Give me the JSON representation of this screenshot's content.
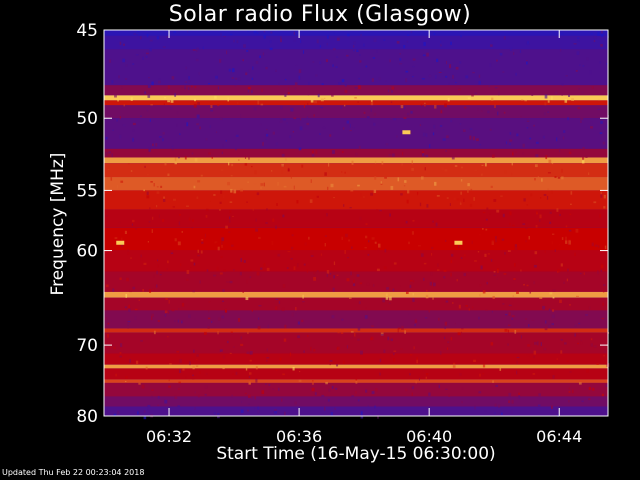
{
  "chart_data": {
    "type": "heatmap",
    "title": "Solar radio Flux (Glasgow)",
    "xlabel": "Start Time (16-May-15 06:30:00)",
    "ylabel": "Frequency [MHz]",
    "x_range_minutes": [
      0,
      15.5
    ],
    "x_ticks": [
      {
        "minute": 2,
        "label": "06:32"
      },
      {
        "minute": 6,
        "label": "06:36"
      },
      {
        "minute": 10,
        "label": "06:40"
      },
      {
        "minute": 14,
        "label": "06:44"
      }
    ],
    "y_range_mhz": [
      45,
      80
    ],
    "y_ticks": [
      {
        "value": 45,
        "label": "45"
      },
      {
        "value": 50,
        "label": "50"
      },
      {
        "value": 55,
        "label": "55"
      },
      {
        "value": 60,
        "label": "60"
      },
      {
        "value": 70,
        "label": "70"
      },
      {
        "value": 80,
        "label": "80"
      }
    ],
    "y_scale": "reciprocal",
    "colors": {
      "low": "#1a18c8",
      "mid": "#c80000",
      "high": "#ffe060"
    },
    "bands": [
      {
        "f1": 45.0,
        "f2": 45.3,
        "level": 0.05
      },
      {
        "f1": 45.3,
        "f2": 46.0,
        "level": 0.1
      },
      {
        "f1": 46.0,
        "f2": 48.0,
        "level": 0.15
      },
      {
        "f1": 48.0,
        "f2": 48.6,
        "level": 0.3
      },
      {
        "f1": 48.6,
        "f2": 48.9,
        "level": 0.95
      },
      {
        "f1": 48.9,
        "f2": 49.2,
        "level": 0.55
      },
      {
        "f1": 49.2,
        "f2": 50.0,
        "level": 0.25
      },
      {
        "f1": 50.0,
        "f2": 52.0,
        "level": 0.18
      },
      {
        "f1": 52.0,
        "f2": 52.6,
        "level": 0.35
      },
      {
        "f1": 52.6,
        "f2": 53.0,
        "level": 0.85
      },
      {
        "f1": 53.0,
        "f2": 54.0,
        "level": 0.6
      },
      {
        "f1": 54.0,
        "f2": 55.0,
        "level": 0.7
      },
      {
        "f1": 55.0,
        "f2": 56.5,
        "level": 0.55
      },
      {
        "f1": 56.5,
        "f2": 58.0,
        "level": 0.45
      },
      {
        "f1": 58.0,
        "f2": 60.0,
        "level": 0.5
      },
      {
        "f1": 60.0,
        "f2": 62.0,
        "level": 0.45
      },
      {
        "f1": 62.0,
        "f2": 64.0,
        "level": 0.4
      },
      {
        "f1": 64.0,
        "f2": 64.6,
        "level": 0.85
      },
      {
        "f1": 64.6,
        "f2": 66.0,
        "level": 0.4
      },
      {
        "f1": 66.0,
        "f2": 68.0,
        "level": 0.3
      },
      {
        "f1": 68.0,
        "f2": 68.5,
        "level": 0.6
      },
      {
        "f1": 68.5,
        "f2": 71.0,
        "level": 0.4
      },
      {
        "f1": 71.0,
        "f2": 72.5,
        "level": 0.45
      },
      {
        "f1": 72.5,
        "f2": 73.0,
        "level": 0.85
      },
      {
        "f1": 73.0,
        "f2": 74.5,
        "level": 0.45
      },
      {
        "f1": 74.5,
        "f2": 75.0,
        "level": 0.65
      },
      {
        "f1": 75.0,
        "f2": 77.0,
        "level": 0.35
      },
      {
        "f1": 77.0,
        "f2": 78.5,
        "level": 0.25
      },
      {
        "f1": 78.5,
        "f2": 80.0,
        "level": 0.15
      }
    ],
    "bursts": [
      {
        "minute": 0.5,
        "mhz": 59.3
      },
      {
        "minute": 10.9,
        "mhz": 59.3
      },
      {
        "minute": 9.3,
        "mhz": 50.9
      }
    ]
  },
  "footer": "Updated Thu Feb 22 00:23:04 2018"
}
